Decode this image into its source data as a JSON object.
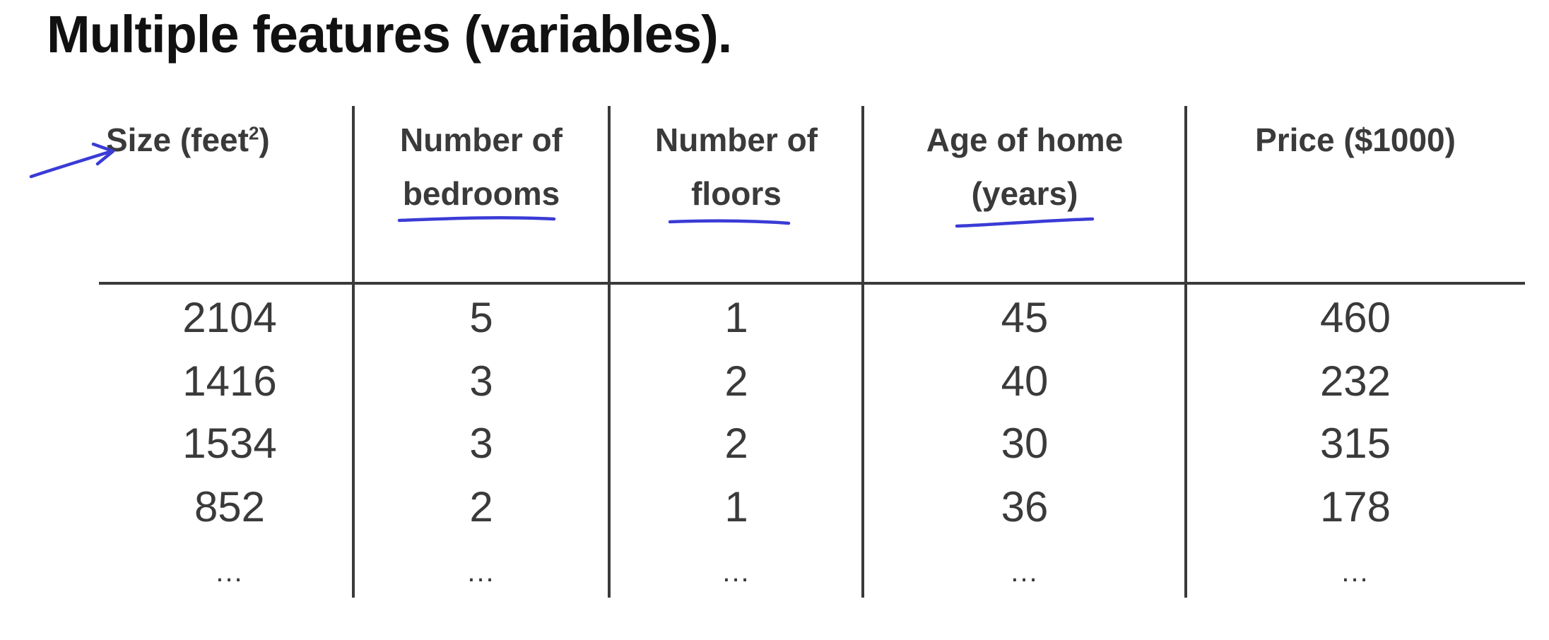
{
  "slide": {
    "title": "Multiple features (variables)."
  },
  "table": {
    "headers": [
      {
        "line1": "Size (feet",
        "sup": "2",
        "line1_end": ")",
        "line2": ""
      },
      {
        "line1": "Number of",
        "line2": "bedrooms"
      },
      {
        "line1": "Number of",
        "line2": "floors"
      },
      {
        "line1": "Age of home",
        "line2": "(years)"
      },
      {
        "line1": "Price ($1000)",
        "line2": ""
      }
    ],
    "rows": [
      [
        "2104",
        "5",
        "1",
        "45",
        "460"
      ],
      [
        "1416",
        "3",
        "2",
        "40",
        "232"
      ],
      [
        "1534",
        "3",
        "2",
        "30",
        "315"
      ],
      [
        "852",
        "2",
        "1",
        "36",
        "178"
      ],
      [
        "...",
        "...",
        "...",
        "...",
        "..."
      ]
    ]
  },
  "annotations": {
    "ink_color": "#3b3bd6",
    "marks": [
      "arrow-icon",
      "underline-bedrooms",
      "underline-floors",
      "underline-years"
    ]
  }
}
